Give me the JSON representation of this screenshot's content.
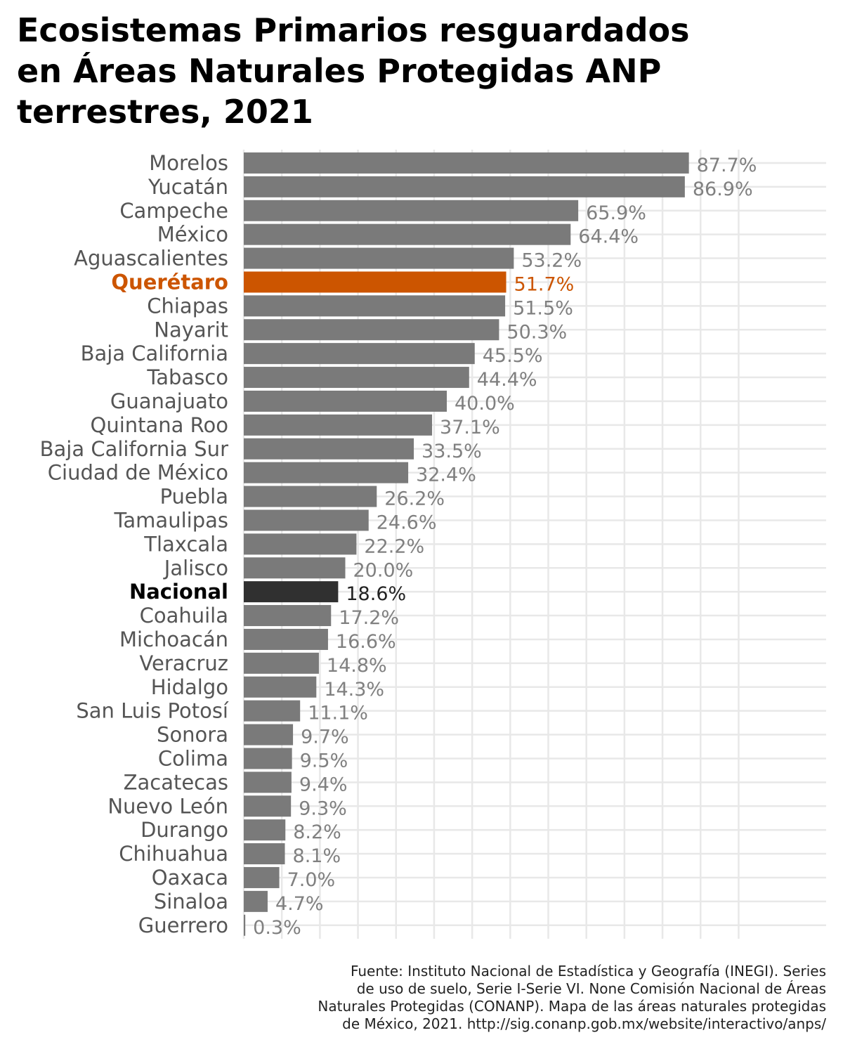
{
  "title_lines": [
    "Ecosistemas Primarios resguardados",
    "en Áreas Naturales Protegidas ANP",
    "terrestres, 2021"
  ],
  "source_lines": [
    "Fuente: Instituto Nacional de Estadística y Geografía (INEGI). Series",
    "de uso de suelo, Serie I-Serie VI. None Comisión Nacional de Áreas",
    "Naturales Protegidas (CONANP). Mapa de las áreas naturales protegidas",
    "de México, 2021. http://sig.conanp.gob.mx/website/interactivo/anps/"
  ],
  "colors": {
    "default_bar": "#7a7a7a",
    "default_label": "#555555",
    "default_value": "#808080",
    "highlight": "#cc5500",
    "national_bar": "#303030",
    "national_label": "#000000",
    "grid": "#e8e8e8"
  },
  "chart_data": {
    "type": "bar",
    "orientation": "horizontal",
    "unit": "%",
    "xlim": [
      0,
      100
    ],
    "grid": true,
    "highlight_category": "Querétaro",
    "reference_category": "Nacional",
    "categories": [
      "Morelos",
      "Yucatán",
      "Campeche",
      "México",
      "Aguascalientes",
      "Querétaro",
      "Chiapas",
      "Nayarit",
      "Baja California",
      "Tabasco",
      "Guanajuato",
      "Quintana Roo",
      "Baja California Sur",
      "Ciudad de México",
      "Puebla",
      "Tamaulipas",
      "Tlaxcala",
      "Jalisco",
      "Nacional",
      "Coahuila",
      "Michoacán",
      "Veracruz",
      "Hidalgo",
      "San Luis Potosí",
      "Sonora",
      "Colima",
      "Zacatecas",
      "Nuevo León",
      "Durango",
      "Chihuahua",
      "Oaxaca",
      "Sinaloa",
      "Guerrero"
    ],
    "values": [
      87.7,
      86.9,
      65.9,
      64.4,
      53.2,
      51.7,
      51.5,
      50.3,
      45.5,
      44.4,
      40.0,
      37.1,
      33.5,
      32.4,
      26.2,
      24.6,
      22.2,
      20.0,
      18.6,
      17.2,
      16.6,
      14.8,
      14.3,
      11.1,
      9.7,
      9.5,
      9.4,
      9.3,
      8.2,
      8.1,
      7.0,
      4.7,
      0.3
    ],
    "value_labels": [
      "87.7%",
      "86.9%",
      "65.9%",
      "64.4%",
      "53.2%",
      "51.7%",
      "51.5%",
      "50.3%",
      "45.5%",
      "44.4%",
      "40.0%",
      "37.1%",
      "33.5%",
      "32.4%",
      "26.2%",
      "24.6%",
      "22.2%",
      "20.0%",
      "18.6%",
      "17.2%",
      "16.6%",
      "14.8%",
      "14.3%",
      "11.1%",
      "9.7%",
      "9.5%",
      "9.4%",
      "9.3%",
      "8.2%",
      "8.1%",
      "7.0%",
      "4.7%",
      "0.3%"
    ]
  }
}
